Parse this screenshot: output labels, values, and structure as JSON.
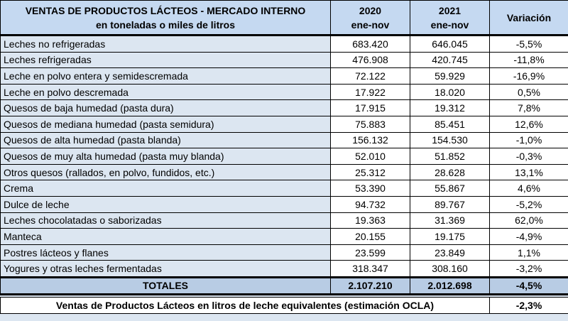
{
  "header": {
    "title": "VENTAS DE PRODUCTOS LÁCTEOS - MERCADO INTERNO",
    "subtitle": "en toneladas o miles de litros",
    "col2020": "2020",
    "col2021": "2021",
    "period": "ene-nov",
    "variation": "Variación"
  },
  "rows": [
    [
      "Leches no refrigeradas",
      "683.420",
      "646.045",
      "-5,5%"
    ],
    [
      "Leches refrigeradas",
      "476.908",
      "420.745",
      "-11,8%"
    ],
    [
      "Leche en polvo entera y semidescremada",
      "72.122",
      "59.929",
      "-16,9%"
    ],
    [
      "Leche en polvo descremada",
      "17.922",
      "18.020",
      "0,5%"
    ],
    [
      "Quesos de baja humedad (pasta dura)",
      "17.915",
      "19.312",
      "7,8%"
    ],
    [
      "Quesos de mediana humedad (pasta semidura)",
      "75.883",
      "85.451",
      "12,6%"
    ],
    [
      "Quesos de alta humedad (pasta blanda)",
      "156.132",
      "154.530",
      "-1,0%"
    ],
    [
      "Quesos de muy alta humedad (pasta muy blanda)",
      "52.010",
      "51.852",
      "-0,3%"
    ],
    [
      "Otros quesos (rallados, en polvo, fundidos, etc.)",
      "25.312",
      "28.628",
      "13,1%"
    ],
    [
      "Crema",
      "53.390",
      "55.867",
      "4,6%"
    ],
    [
      "Dulce de leche",
      "94.732",
      "89.767",
      "-5,2%"
    ],
    [
      "Leches chocolatadas o saborizadas",
      "19.363",
      "31.369",
      "62,0%"
    ],
    [
      "Manteca",
      "20.155",
      "19.175",
      "-4,9%"
    ],
    [
      "Postres lácteos y flanes",
      "23.599",
      "23.849",
      "1,1%"
    ],
    [
      "Yogures y otras leches fermentadas",
      "318.347",
      "308.160",
      "-3,2%"
    ]
  ],
  "totals": {
    "label": "TOTALES",
    "v2020": "2.107.210",
    "v2021": "2.012.698",
    "variation": "-4,5%"
  },
  "equivalent": {
    "label": "Ventas de Productos Lácteos en litros de leche equivalentes (estimación OCLA)",
    "variation": "-2,3%"
  }
}
